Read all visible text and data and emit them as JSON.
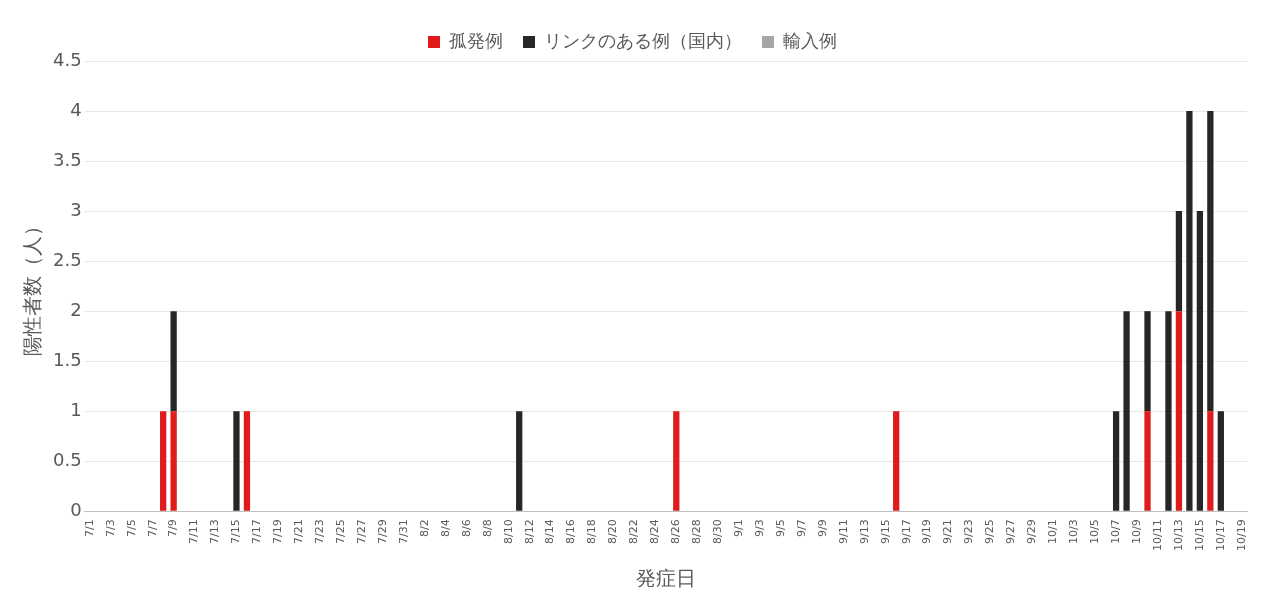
{
  "chart_data": {
    "type": "bar",
    "stacked": true,
    "xlabel": "発症日",
    "ylabel": "陽性者数（人）",
    "categories": [
      "7/1",
      null,
      "7/3",
      null,
      "7/5",
      null,
      "7/7",
      null,
      "7/9",
      null,
      "7/11",
      null,
      "7/13",
      null,
      "7/15",
      null,
      "7/17",
      null,
      "7/19",
      null,
      "7/21",
      null,
      "7/23",
      null,
      "7/25",
      null,
      "7/27",
      null,
      "7/29",
      null,
      "7/31",
      null,
      "8/2",
      null,
      "8/4",
      null,
      "8/6",
      null,
      "8/8",
      null,
      "8/10",
      null,
      "8/12",
      null,
      "8/14",
      null,
      "8/16",
      null,
      "8/18",
      null,
      "8/20",
      null,
      "8/22",
      null,
      "8/24",
      null,
      "8/26",
      null,
      "8/28",
      null,
      "8/30",
      null,
      "9/1",
      null,
      "9/3",
      null,
      "9/5",
      null,
      "9/7",
      null,
      "9/9",
      null,
      "9/11",
      null,
      "9/13",
      null,
      "9/15",
      null,
      "9/17",
      null,
      "9/19",
      null,
      "9/21",
      null,
      "9/23",
      null,
      "9/25",
      null,
      "9/27",
      null,
      "9/29",
      null,
      "10/1",
      null,
      "10/3",
      null,
      "10/5",
      null,
      "10/7",
      null,
      "10/9",
      null,
      "10/11",
      null,
      "10/13",
      null,
      "10/15",
      null,
      "10/17",
      null,
      "10/19"
    ],
    "series": [
      {
        "name": "孤発例",
        "color": "#e01b1b",
        "values": [
          0,
          0,
          0,
          0,
          0,
          0,
          0,
          1,
          1,
          0,
          0,
          0,
          0,
          0,
          0,
          1,
          0,
          0,
          0,
          0,
          0,
          0,
          0,
          0,
          0,
          0,
          0,
          0,
          0,
          0,
          0,
          0,
          0,
          0,
          0,
          0,
          0,
          0,
          0,
          0,
          0,
          0,
          0,
          0,
          0,
          0,
          0,
          0,
          0,
          0,
          0,
          0,
          0,
          0,
          0,
          0,
          1,
          0,
          0,
          0,
          0,
          0,
          0,
          0,
          0,
          0,
          0,
          0,
          0,
          0,
          0,
          0,
          0,
          0,
          0,
          0,
          0,
          1,
          0,
          0,
          0,
          0,
          0,
          0,
          0,
          0,
          0,
          0,
          0,
          0,
          0,
          0,
          0,
          0,
          0,
          0,
          0,
          0,
          0,
          0,
          0,
          1,
          0,
          0,
          2,
          0,
          0,
          1,
          0,
          0,
          0
        ]
      },
      {
        "name": "リンクのある例（国内）",
        "color": "#262626",
        "values": [
          0,
          0,
          0,
          0,
          0,
          0,
          0,
          0,
          1,
          0,
          0,
          0,
          0,
          0,
          1,
          0,
          0,
          0,
          0,
          0,
          0,
          0,
          0,
          0,
          0,
          0,
          0,
          0,
          0,
          0,
          0,
          0,
          0,
          0,
          0,
          0,
          0,
          0,
          0,
          0,
          0,
          1,
          0,
          0,
          0,
          0,
          0,
          0,
          0,
          0,
          0,
          0,
          0,
          0,
          0,
          0,
          0,
          0,
          0,
          0,
          0,
          0,
          0,
          0,
          0,
          0,
          0,
          0,
          0,
          0,
          0,
          0,
          0,
          0,
          0,
          0,
          0,
          0,
          0,
          0,
          0,
          0,
          0,
          0,
          0,
          0,
          0,
          0,
          0,
          0,
          0,
          0,
          0,
          0,
          0,
          0,
          0,
          0,
          1,
          2,
          0,
          1,
          0,
          2,
          1,
          4,
          3,
          3,
          1,
          0,
          0
        ]
      },
      {
        "name": "輸入例",
        "color": "#a6a6a6",
        "values": [
          0,
          0,
          0,
          0,
          0,
          0,
          0,
          0,
          0,
          0,
          0,
          0,
          0,
          0,
          0,
          0,
          0,
          0,
          0,
          0,
          0,
          0,
          0,
          0,
          0,
          0,
          0,
          0,
          0,
          0,
          0,
          0,
          0,
          0,
          0,
          0,
          0,
          0,
          0,
          0,
          0,
          0,
          0,
          0,
          0,
          0,
          0,
          0,
          0,
          0,
          0,
          0,
          0,
          0,
          0,
          0,
          0,
          0,
          0,
          0,
          0,
          0,
          0,
          0,
          0,
          0,
          0,
          0,
          0,
          0,
          0,
          0,
          0,
          0,
          0,
          0,
          0,
          0,
          0,
          0,
          0,
          0,
          0,
          0,
          0,
          0,
          0,
          0,
          0,
          0,
          0,
          0,
          0,
          0,
          0,
          0,
          0,
          0,
          0,
          0,
          0,
          0,
          0,
          0,
          0,
          0,
          0,
          0,
          0,
          0,
          0
        ]
      }
    ],
    "ylim": [
      0,
      4.5
    ],
    "yticks": [
      0,
      0.5,
      1,
      1.5,
      2,
      2.5,
      3,
      3.5,
      4,
      4.5
    ],
    "grid": "y",
    "legend": "top"
  }
}
